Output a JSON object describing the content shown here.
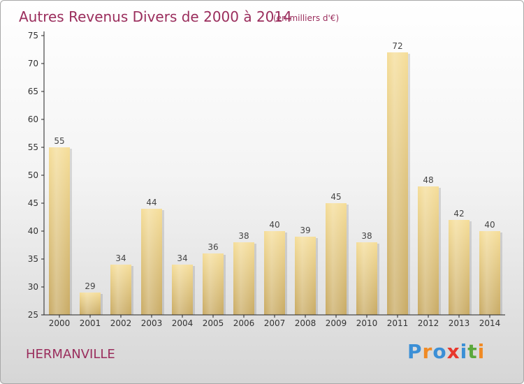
{
  "colors": {
    "bar_light": "#f5dd98",
    "bar_dark": "#c8aa64",
    "title": "#9a2d5c",
    "axis": "#222222"
  },
  "commune": "HERMANVILLE",
  "logo": {
    "letters": [
      "P",
      "r",
      "o",
      "x",
      "i",
      "t",
      "i"
    ],
    "colors": [
      "#3b8fd6",
      "#f08a24",
      "#3b8fd6",
      "#e8372c",
      "#3b8fd6",
      "#5aa83c",
      "#f08a24"
    ]
  },
  "chart_data": {
    "type": "bar",
    "title": "Autres Revenus Divers de 2000 à 2014",
    "subtitle": "(en milliers d'€)",
    "categories": [
      "2000",
      "2001",
      "2002",
      "2003",
      "2004",
      "2005",
      "2006",
      "2007",
      "2008",
      "2009",
      "2010",
      "2011",
      "2012",
      "2013",
      "2014"
    ],
    "values": [
      55,
      29,
      34,
      44,
      34,
      36,
      38,
      40,
      39,
      45,
      38,
      72,
      48,
      42,
      40
    ],
    "ylim": [
      25,
      75
    ],
    "yticks": [
      25,
      30,
      35,
      40,
      45,
      50,
      55,
      60,
      65,
      70,
      75
    ],
    "xlabel": "",
    "ylabel": "",
    "grid": false
  }
}
